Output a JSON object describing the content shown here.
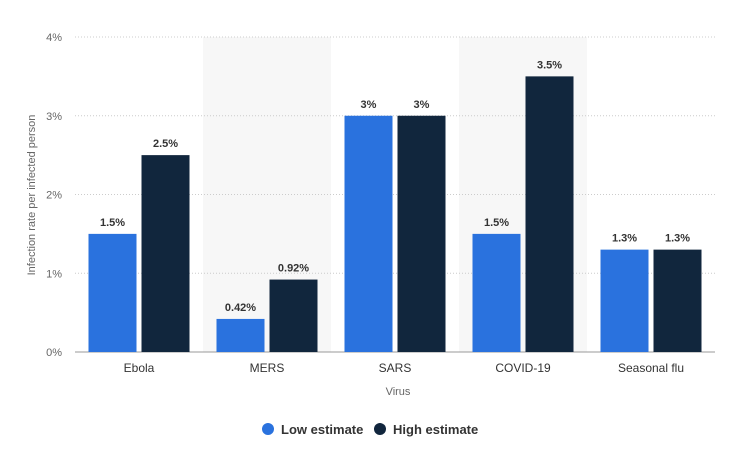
{
  "chart_data": {
    "type": "bar",
    "categories": [
      "Ebola",
      "MERS",
      "SARS",
      "COVID-19",
      "Seasonal flu"
    ],
    "series": [
      {
        "name": "Low estimate",
        "values": [
          1.5,
          0.42,
          3,
          1.5,
          1.3
        ],
        "labels": [
          "1.5%",
          "0.42%",
          "3%",
          "1.5%",
          "1.3%"
        ]
      },
      {
        "name": "High estimate",
        "values": [
          2.5,
          0.92,
          3,
          3.5,
          1.3
        ],
        "labels": [
          "2.5%",
          "0.92%",
          "3%",
          "3.5%",
          "1.3%"
        ]
      }
    ],
    "xlabel": "Virus",
    "ylabel": "Infection rate per infected person",
    "ylim": [
      0,
      4
    ],
    "yticks": [
      0,
      1,
      2,
      3,
      4
    ],
    "ytick_labels": [
      "0%",
      "1%",
      "2%",
      "3%",
      "4%"
    ],
    "grid": true,
    "legend_position": "bottom-center",
    "colors": {
      "low": "#2a72de",
      "high": "#11263d",
      "band": "#f7f7f7",
      "grid": "#cccccc"
    }
  }
}
